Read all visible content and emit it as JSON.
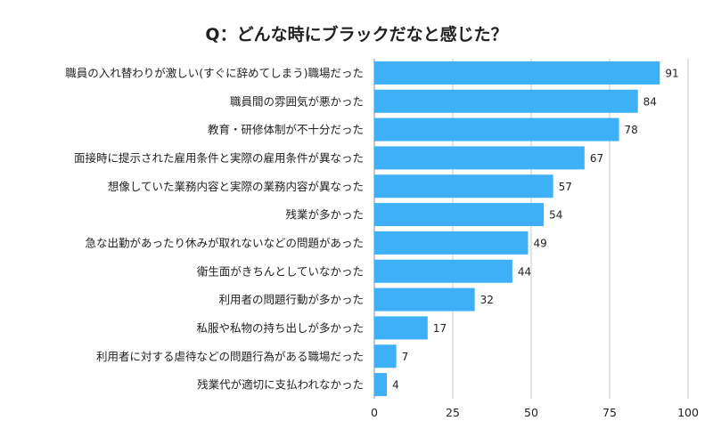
{
  "chart_data": {
    "type": "bar",
    "orientation": "horizontal",
    "title": "Q：どんな時にブラックだなと感じた？",
    "categories": [
      "職員の入れ替わりが激しい(すぐに辞めてしまう)職場だった",
      "職員間の雰囲気が悪かった",
      "教育・研修体制が不十分だった",
      "面接時に提示された雇用条件と実際の雇用条件が異なった",
      "想像していた業務内容と実際の業務内容が異なった",
      "残業が多かった",
      "急な出勤があったり休みが取れないなどの問題があった",
      "衛生面がきちんとしていなかった",
      "利用者の問題行動が多かった",
      "私服や私物の持ち出しが多かった",
      "利用者に対する虐待などの問題行為がある職場だった",
      "残業代が適切に支払われなかった"
    ],
    "values": [
      91,
      84,
      78,
      67,
      57,
      54,
      49,
      44,
      32,
      17,
      7,
      4
    ],
    "xlim": [
      0,
      100
    ],
    "xticks": [
      0,
      25,
      50,
      75,
      100
    ],
    "xlabel": "",
    "ylabel": "",
    "grid": true,
    "legend": "none",
    "bar_color": "#3db0f7"
  }
}
